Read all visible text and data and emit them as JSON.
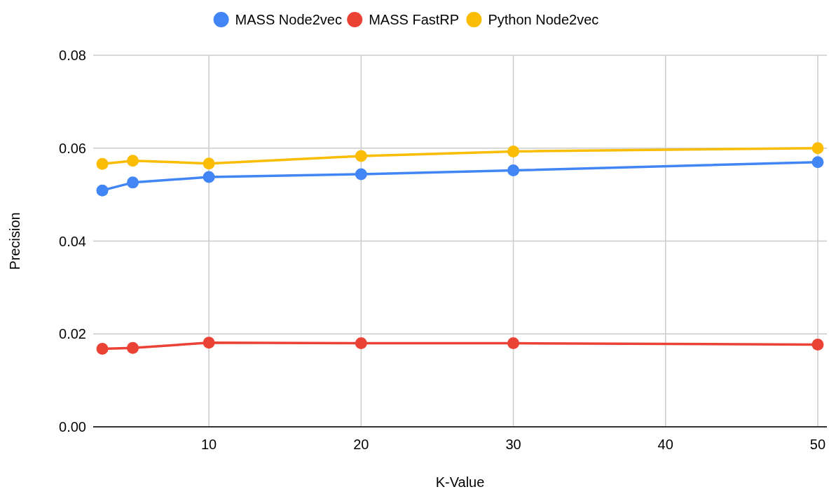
{
  "chart_data": {
    "type": "line",
    "xlabel": "K-Value",
    "ylabel": "Precision",
    "x": [
      3,
      5,
      10,
      20,
      30,
      50
    ],
    "series": [
      {
        "name": "MASS Node2vec",
        "color": "#4285f4",
        "values": [
          0.0509,
          0.0526,
          0.0538,
          0.0544,
          0.0552,
          0.057
        ]
      },
      {
        "name": "MASS FastRP",
        "color": "#ea4335",
        "values": [
          0.0168,
          0.017,
          0.0181,
          0.018,
          0.018,
          0.0177
        ]
      },
      {
        "name": "Python Node2vec",
        "color": "#fbbc04",
        "values": [
          0.0566,
          0.0573,
          0.0567,
          0.0583,
          0.0593,
          0.06
        ]
      }
    ],
    "xlim": [
      2.4,
      50.6
    ],
    "xticks": [
      10,
      20,
      30,
      40,
      50
    ],
    "ylim": [
      0,
      0.08
    ],
    "yticks": [
      {
        "value": 0,
        "label": "0.00"
      },
      {
        "value": 0.02,
        "label": "0.02"
      },
      {
        "value": 0.04,
        "label": "0.04"
      },
      {
        "value": 0.06,
        "label": "0.06"
      },
      {
        "value": 0.08,
        "label": "0.08"
      }
    ],
    "grid": true,
    "legend": "top",
    "marker": "circle",
    "line_style": "solid"
  }
}
